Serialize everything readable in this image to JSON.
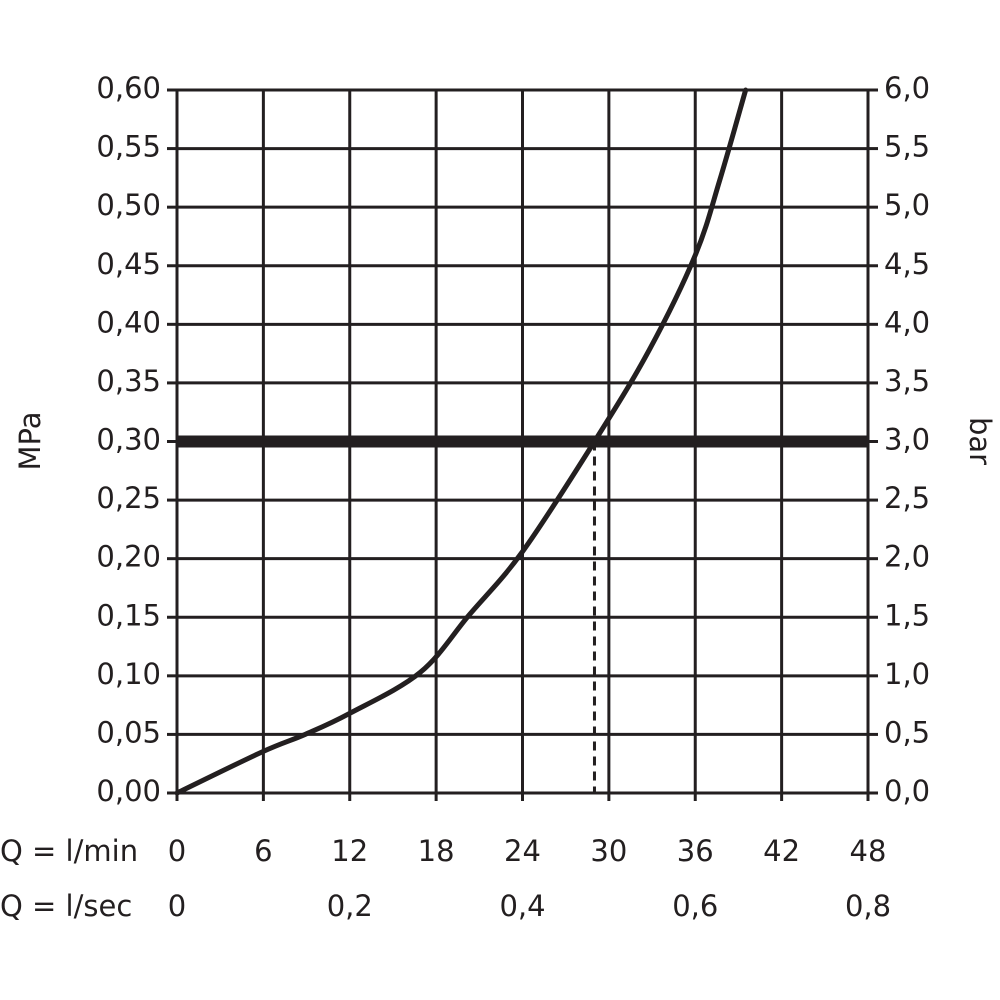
{
  "chart_data": {
    "type": "line",
    "y_label": "MPa",
    "y2_label": "bar",
    "x_label": "Q = l/min",
    "x2_label": "Q = l/sec",
    "xlim": [
      0,
      48
    ],
    "xticks": [
      0,
      6,
      12,
      18,
      24,
      30,
      36,
      42,
      48
    ],
    "x2lim": [
      0,
      0.8
    ],
    "x2ticks": [
      0,
      {
        "value": 0.2,
        "label": "0,2"
      },
      {
        "value": 0.4,
        "label": "0,4"
      },
      {
        "value": 0.6,
        "label": "0,6"
      },
      {
        "value": 0.8,
        "label": "0,8"
      }
    ],
    "ylim": [
      0,
      0.6
    ],
    "yticks": [
      {
        "value": 0,
        "label": "0,00"
      },
      {
        "value": 0.05,
        "label": "0,05"
      },
      {
        "value": 0.1,
        "label": "0,10"
      },
      {
        "value": 0.15,
        "label": "0,15"
      },
      {
        "value": 0.2,
        "label": "0,20"
      },
      {
        "value": 0.25,
        "label": "0,25"
      },
      {
        "value": 0.3,
        "label": "0,30"
      },
      {
        "value": 0.35,
        "label": "0,35"
      },
      {
        "value": 0.4,
        "label": "0,40"
      },
      {
        "value": 0.45,
        "label": "0,45"
      },
      {
        "value": 0.5,
        "label": "0,50"
      },
      {
        "value": 0.55,
        "label": "0,55"
      },
      {
        "value": 0.6,
        "label": "0,60"
      }
    ],
    "y2lim": [
      0,
      6
    ],
    "y2ticks": [
      {
        "value": 0,
        "label": "0,0"
      },
      {
        "value": 0.5,
        "label": "0,5"
      },
      {
        "value": 1,
        "label": "1,0"
      },
      {
        "value": 1.5,
        "label": "1,5"
      },
      {
        "value": 2,
        "label": "2,0"
      },
      {
        "value": 2.5,
        "label": "2,5"
      },
      {
        "value": 3,
        "label": "3,0"
      },
      {
        "value": 3.5,
        "label": "3,5"
      },
      {
        "value": 4,
        "label": "4,0"
      },
      {
        "value": 4.5,
        "label": "4,5"
      },
      {
        "value": 5,
        "label": "5,0"
      },
      {
        "value": 5.5,
        "label": "5,5"
      },
      {
        "value": 6,
        "label": "6,0"
      }
    ],
    "grid": true,
    "hline": 0.3,
    "vline": 29,
    "series": [
      {
        "color": "#231f20",
        "x": [
          0,
          5.9,
          8.9,
          12,
          16.9,
          20.3,
          24,
          29,
          32.8,
          36,
          37.7,
          39.5
        ],
        "values": [
          0,
          0.035,
          0.05,
          0.068,
          0.103,
          0.152,
          0.206,
          0.3,
          0.378,
          0.459,
          0.523,
          0.6
        ]
      }
    ]
  }
}
